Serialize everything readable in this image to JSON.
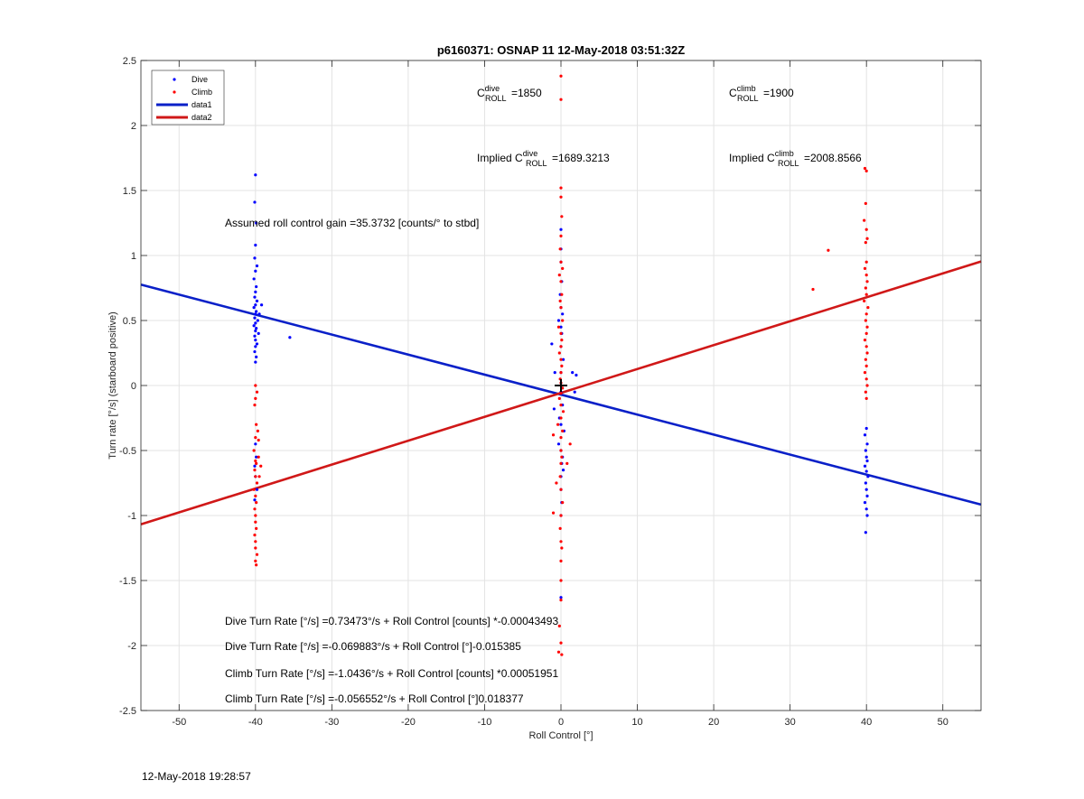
{
  "figure": {
    "timestamp": "12-May-2018 19:28:57"
  },
  "chart_data": {
    "type": "scatter",
    "title": "p6160371: OSNAP 11 12-May-2018 03:51:32Z",
    "xlabel": "Roll Control [°]",
    "ylabel": "Turn rate [°/s] (starboard positive)",
    "xlim": [
      -55,
      55
    ],
    "ylim": [
      -2.5,
      2.5
    ],
    "xticks": [
      -50,
      -40,
      -30,
      -20,
      -10,
      0,
      10,
      20,
      30,
      40,
      50
    ],
    "xtick_labels": [
      "-50",
      "-40",
      "-30",
      "-20",
      "-10",
      "0",
      "10",
      "20",
      "30",
      "40",
      "50"
    ],
    "yticks": [
      -2.5,
      -2,
      -1.5,
      -1,
      -0.5,
      0,
      0.5,
      1,
      1.5,
      2,
      2.5
    ],
    "ytick_labels": [
      "-2.5",
      "-2",
      "-1.5",
      "-1",
      "-0.5",
      "0",
      "0.5",
      "1",
      "1.5",
      "2",
      "2.5"
    ],
    "grid": true,
    "legend": {
      "placement": "top-left",
      "entries": [
        "Dive",
        "Climb",
        "data1",
        "data2"
      ]
    },
    "colors": {
      "dive": "#0000ff",
      "climb": "#ff0000",
      "data1": "#0a20c8",
      "data2": "#d01818"
    },
    "series": [
      {
        "name": "Dive",
        "style": "points",
        "points": [
          [
            -40,
            1.62
          ],
          [
            -40.1,
            1.41
          ],
          [
            -39.9,
            1.25
          ],
          [
            -40,
            1.08
          ],
          [
            -40.1,
            0.98
          ],
          [
            -39.8,
            0.92
          ],
          [
            -40,
            0.88
          ],
          [
            -40.2,
            0.82
          ],
          [
            -39.9,
            0.76
          ],
          [
            -40,
            0.72
          ],
          [
            -40.1,
            0.68
          ],
          [
            -39.8,
            0.65
          ],
          [
            -40,
            0.62
          ],
          [
            -40.2,
            0.6
          ],
          [
            -39.9,
            0.57
          ],
          [
            -40,
            0.55
          ],
          [
            -40.1,
            0.52
          ],
          [
            -39.7,
            0.5
          ],
          [
            -40,
            0.48
          ],
          [
            -40.2,
            0.46
          ],
          [
            -39.9,
            0.44
          ],
          [
            -40,
            0.42
          ],
          [
            -39.6,
            0.4
          ],
          [
            -40.1,
            0.38
          ],
          [
            -40,
            0.35
          ],
          [
            -39.8,
            0.32
          ],
          [
            -40,
            0.3
          ],
          [
            -40.1,
            0.26
          ],
          [
            -39.9,
            0.22
          ],
          [
            -40,
            0.18
          ],
          [
            -39.5,
            0.55
          ],
          [
            -39.2,
            0.62
          ],
          [
            -35.5,
            0.37
          ],
          [
            -40,
            -0.45
          ],
          [
            -39.9,
            -0.55
          ],
          [
            -40.1,
            -0.62
          ],
          [
            -40,
            -0.7
          ],
          [
            -39.8,
            -0.8
          ],
          [
            -40.1,
            -0.88
          ],
          [
            0,
            1.2
          ],
          [
            0,
            1.05
          ],
          [
            0,
            0.95
          ],
          [
            0.1,
            0.8
          ],
          [
            -0.1,
            0.7
          ],
          [
            0,
            0.6
          ],
          [
            0.2,
            0.55
          ],
          [
            -0.3,
            0.5
          ],
          [
            0,
            0.45
          ],
          [
            0.1,
            0.4
          ],
          [
            -1.2,
            0.32
          ],
          [
            1.5,
            0.1
          ],
          [
            -0.8,
            0.1
          ],
          [
            0,
            0.3
          ],
          [
            0.3,
            0.2
          ],
          [
            0,
            0.1
          ],
          [
            0,
            -0.05
          ],
          [
            0.2,
            -0.15
          ],
          [
            -0.2,
            -0.25
          ],
          [
            0,
            -0.3
          ],
          [
            0.4,
            -0.35
          ],
          [
            -0.3,
            -0.45
          ],
          [
            0,
            -0.5
          ],
          [
            0.2,
            -0.55
          ],
          [
            0.1,
            -0.6
          ],
          [
            0.3,
            -0.65
          ],
          [
            0,
            -0.7
          ],
          [
            0,
            -0.8
          ],
          [
            0.1,
            -0.9
          ],
          [
            0,
            -1.0
          ],
          [
            2,
            0.08
          ],
          [
            1.8,
            -0.05
          ],
          [
            -0.9,
            -0.18
          ],
          [
            0,
            -1.63
          ],
          [
            40,
            -0.33
          ],
          [
            39.8,
            -0.38
          ],
          [
            40.1,
            -0.45
          ],
          [
            39.9,
            -0.5
          ],
          [
            40,
            -0.55
          ],
          [
            40.1,
            -0.58
          ],
          [
            39.8,
            -0.62
          ],
          [
            40,
            -0.66
          ],
          [
            40.2,
            -0.7
          ],
          [
            39.9,
            -0.75
          ],
          [
            40,
            -0.8
          ],
          [
            40.1,
            -0.85
          ],
          [
            39.8,
            -0.9
          ],
          [
            40,
            -0.95
          ],
          [
            40.1,
            -1.0
          ],
          [
            39.9,
            -1.13
          ]
        ]
      },
      {
        "name": "Climb",
        "style": "points",
        "points": [
          [
            -40,
            0.0
          ],
          [
            -39.8,
            -0.05
          ],
          [
            -40,
            -0.1
          ],
          [
            -40.1,
            -0.15
          ],
          [
            -39.9,
            -0.3
          ],
          [
            -39.7,
            -0.35
          ],
          [
            -40,
            -0.4
          ],
          [
            -39.6,
            -0.42
          ],
          [
            -40.2,
            -0.5
          ],
          [
            -40,
            -0.58
          ],
          [
            -39.9,
            -0.6
          ],
          [
            -40.1,
            -0.65
          ],
          [
            -40,
            -0.7
          ],
          [
            -39.8,
            -0.75
          ],
          [
            -40.2,
            -0.8
          ],
          [
            -40,
            -0.85
          ],
          [
            -39.9,
            -0.9
          ],
          [
            -40.1,
            -0.95
          ],
          [
            -40,
            -1.0
          ],
          [
            -40,
            -1.05
          ],
          [
            -39.9,
            -1.1
          ],
          [
            -40.1,
            -1.15
          ],
          [
            -40,
            -1.2
          ],
          [
            -40,
            -1.25
          ],
          [
            -39.8,
            -1.3
          ],
          [
            -40,
            -1.35
          ],
          [
            -39.9,
            -1.38
          ],
          [
            -39.6,
            -0.55
          ],
          [
            -39.3,
            -0.62
          ],
          [
            -39.5,
            -0.7
          ],
          [
            0,
            2.38
          ],
          [
            0,
            2.2
          ],
          [
            0,
            1.52
          ],
          [
            0,
            1.45
          ],
          [
            0.1,
            1.3
          ],
          [
            0,
            1.15
          ],
          [
            -0.1,
            1.05
          ],
          [
            0,
            0.95
          ],
          [
            0.2,
            0.9
          ],
          [
            -0.2,
            0.85
          ],
          [
            0,
            0.8
          ],
          [
            0.1,
            0.7
          ],
          [
            -0.1,
            0.65
          ],
          [
            0,
            0.6
          ],
          [
            0.2,
            0.5
          ],
          [
            -0.3,
            0.45
          ],
          [
            0,
            0.4
          ],
          [
            0.1,
            0.35
          ],
          [
            0,
            0.3
          ],
          [
            -0.2,
            0.25
          ],
          [
            0,
            0.2
          ],
          [
            0.1,
            0.15
          ],
          [
            0,
            0.1
          ],
          [
            -0.1,
            0.05
          ],
          [
            0,
            0.02
          ],
          [
            0.2,
            -0.02
          ],
          [
            0,
            -0.06
          ],
          [
            -0.2,
            -0.1
          ],
          [
            0,
            -0.15
          ],
          [
            0.3,
            -0.2
          ],
          [
            0,
            -0.25
          ],
          [
            -0.4,
            -0.3
          ],
          [
            0.2,
            -0.35
          ],
          [
            0,
            -0.4
          ],
          [
            -1.0,
            -0.38
          ],
          [
            1.2,
            -0.45
          ],
          [
            0,
            -0.5
          ],
          [
            0.1,
            -0.55
          ],
          [
            0,
            -0.6
          ],
          [
            -0.1,
            -0.7
          ],
          [
            0,
            -0.8
          ],
          [
            0.2,
            -0.9
          ],
          [
            0,
            -1.0
          ],
          [
            -0.1,
            -1.1
          ],
          [
            0,
            -1.2
          ],
          [
            0.1,
            -1.25
          ],
          [
            0,
            -1.35
          ],
          [
            0,
            -1.5
          ],
          [
            0,
            -1.65
          ],
          [
            -0.2,
            -1.85
          ],
          [
            0,
            -1.98
          ],
          [
            -0.3,
            -2.05
          ],
          [
            0.1,
            -2.07
          ],
          [
            -1.0,
            -0.98
          ],
          [
            0.8,
            -0.6
          ],
          [
            -0.6,
            -0.75
          ],
          [
            39.8,
            1.67
          ],
          [
            40,
            1.65
          ],
          [
            39.9,
            1.4
          ],
          [
            39.7,
            1.27
          ],
          [
            40,
            1.2
          ],
          [
            40.1,
            1.13
          ],
          [
            39.9,
            1.1
          ],
          [
            40,
            0.95
          ],
          [
            39.8,
            0.9
          ],
          [
            40,
            0.85
          ],
          [
            40.1,
            0.8
          ],
          [
            39.9,
            0.75
          ],
          [
            40,
            0.7
          ],
          [
            39.7,
            0.65
          ],
          [
            40.2,
            0.6
          ],
          [
            40,
            0.55
          ],
          [
            39.9,
            0.5
          ],
          [
            40.1,
            0.45
          ],
          [
            40,
            0.4
          ],
          [
            39.8,
            0.35
          ],
          [
            40,
            0.3
          ],
          [
            40.1,
            0.25
          ],
          [
            39.9,
            0.2
          ],
          [
            40,
            0.15
          ],
          [
            39.8,
            0.1
          ],
          [
            40,
            0.05
          ],
          [
            40.1,
            0.0
          ],
          [
            39.9,
            -0.05
          ],
          [
            40,
            -0.1
          ],
          [
            33,
            0.74
          ],
          [
            35,
            1.04
          ]
        ]
      },
      {
        "name": "data1",
        "style": "line",
        "points": [
          [
            -55,
            0.776
          ],
          [
            55,
            -0.916
          ]
        ]
      },
      {
        "name": "data2",
        "style": "line",
        "points": [
          [
            -55,
            -1.068
          ],
          [
            55,
            0.954
          ]
        ]
      }
    ],
    "marker": {
      "x": 0,
      "y": 0,
      "symbol": "+"
    },
    "annotations": {
      "c_dive": {
        "base": "C",
        "sup": "dive",
        "sub": "ROLL",
        "value": "=1850"
      },
      "c_climb": {
        "base": "C",
        "sup": "climb",
        "sub": "ROLL",
        "value": "=1900"
      },
      "implied_dive": {
        "prefix": "Implied ",
        "base": "C",
        "sup": "dive",
        "sub": "ROLL",
        "value": "=1689.3213"
      },
      "implied_climb": {
        "prefix": "Implied ",
        "base": "C",
        "sup": "climb",
        "sub": "ROLL",
        "value": "=2008.8566"
      },
      "gain": "Assumed roll control gain =35.3732 [counts/° to stbd]",
      "dive_counts": "Dive Turn Rate [°/s] =0.73473°/s + Roll Control [counts] *-0.00043493",
      "dive_degrees": "Dive Turn Rate [°/s] =-0.069883°/s + Roll Control [°]-0.015385",
      "climb_counts": "Climb Turn Rate [°/s] =-1.0436°/s + Roll Control [counts] *0.00051951",
      "climb_degrees": "Climb Turn Rate [°/s] =-0.056552°/s + Roll Control [°]0.018377"
    }
  }
}
